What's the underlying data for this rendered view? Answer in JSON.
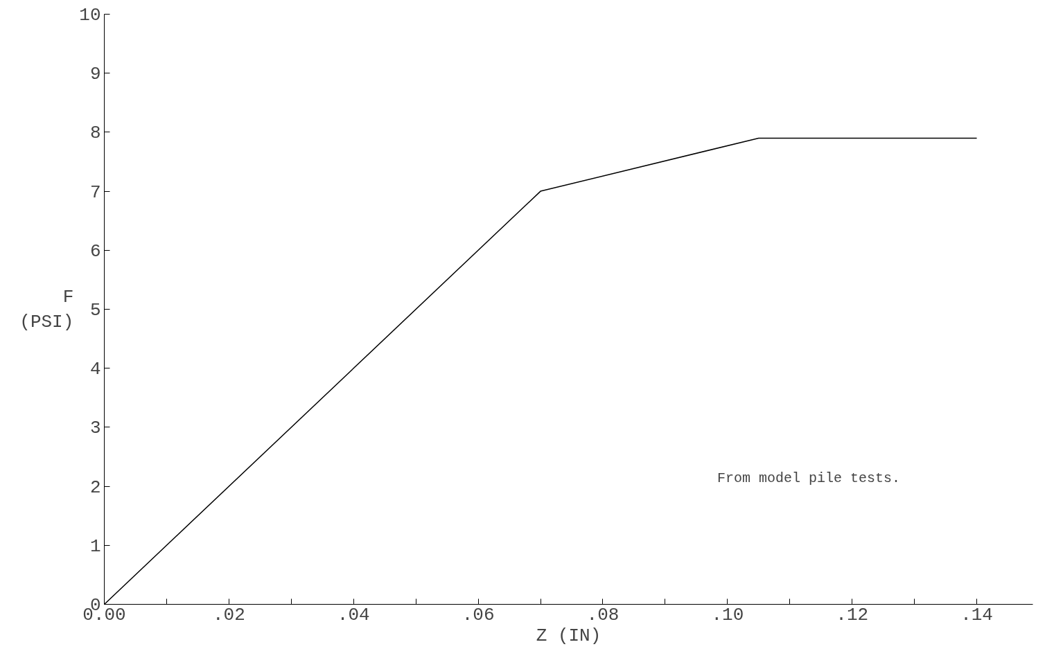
{
  "chart_data": {
    "type": "line",
    "xlabel": "Z (IN)",
    "ylabel": "F\n(PSI)",
    "x": [
      0,
      0.07,
      0.105,
      0.14
    ],
    "series": [
      {
        "color": "#000000",
        "values": [
          0,
          7,
          7.9,
          7.9
        ]
      }
    ],
    "xlim": [
      0,
      0.149
    ],
    "ylim": [
      0,
      10
    ],
    "xticks": [
      {
        "value": 0,
        "label": "0.00"
      },
      {
        "value": 0.01,
        "label": null
      },
      {
        "value": 0.02,
        "label": ".02"
      },
      {
        "value": 0.03,
        "label": null
      },
      {
        "value": 0.04,
        "label": ".04"
      },
      {
        "value": 0.05,
        "label": null
      },
      {
        "value": 0.06,
        "label": ".06"
      },
      {
        "value": 0.07,
        "label": null
      },
      {
        "value": 0.08,
        "label": ".08"
      },
      {
        "value": 0.09,
        "label": null
      },
      {
        "value": 0.1,
        "label": ".10"
      },
      {
        "value": 0.11,
        "label": null
      },
      {
        "value": 0.12,
        "label": ".12"
      },
      {
        "value": 0.13,
        "label": null
      },
      {
        "value": 0.14,
        "label": ".14"
      }
    ],
    "yticks": [
      0,
      1,
      2,
      3,
      4,
      5,
      6,
      7,
      8,
      9,
      10
    ],
    "grid": false,
    "line_style": "solid",
    "annotations": [
      "From model pile tests."
    ]
  }
}
